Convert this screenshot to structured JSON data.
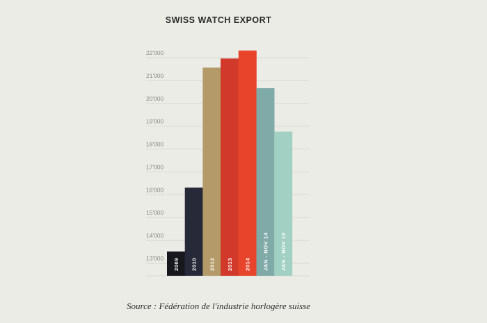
{
  "chart_data": {
    "type": "bar",
    "title": "SWISS WATCH EXPORT",
    "source": "Source : Fédération de l'industrie horlogère suisse",
    "categories": [
      "2009",
      "2010",
      "2012",
      "2013",
      "2014",
      "JAN - NOV 14",
      "JAN - NOV 15"
    ],
    "values": [
      13300,
      16100,
      21350,
      21750,
      22100,
      20450,
      18550
    ],
    "colors": [
      "#17181e",
      "#272939",
      "#b49a68",
      "#d13a2a",
      "#e8442b",
      "#7faaa8",
      "#a2d1c3"
    ],
    "yticks": [
      "13'000",
      "14'000",
      "15'000",
      "16'000",
      "17'000",
      "18'000",
      "19'000",
      "20'000",
      "21'000",
      "22'000"
    ],
    "ylim": [
      12300,
      22300
    ],
    "grid": true
  }
}
